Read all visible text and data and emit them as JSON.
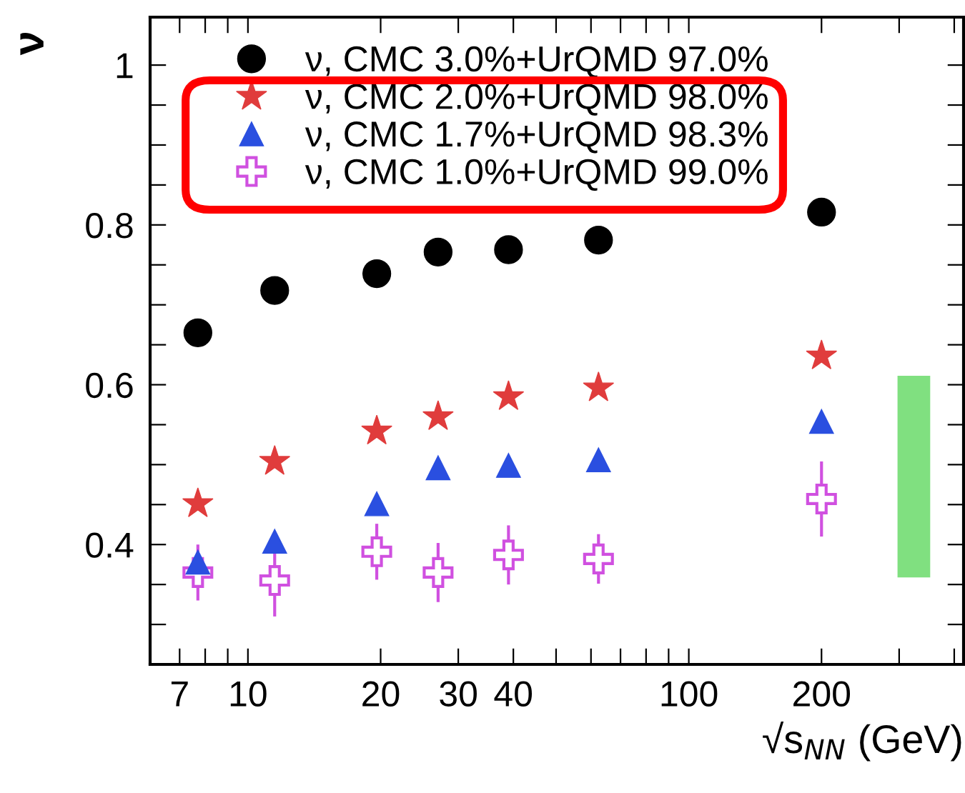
{
  "chart_data": {
    "type": "scatter",
    "xlabel": "√s$_{NN}$ (GeV)",
    "ylabel": "ν",
    "log": "x",
    "xlim": [
      6,
      420
    ],
    "ylim": [
      0.25,
      1.06
    ],
    "xticks": [
      7,
      {
        "value": 8,
        "label": null
      },
      {
        "value": 9,
        "label": null
      },
      10,
      20,
      30,
      40,
      {
        "value": 50,
        "label": null
      },
      {
        "value": 60,
        "label": null
      },
      {
        "value": 70,
        "label": null
      },
      {
        "value": 80,
        "label": null
      },
      {
        "value": 90,
        "label": null
      },
      100,
      200,
      {
        "value": 300,
        "label": null
      },
      {
        "value": 400,
        "label": null
      }
    ],
    "yticks": [
      {
        "value": 0.25,
        "label": null
      },
      {
        "value": 0.3,
        "label": null
      },
      {
        "value": 0.35,
        "label": null
      },
      0.4,
      {
        "value": 0.45,
        "label": null
      },
      {
        "value": 0.5,
        "label": null
      },
      {
        "value": 0.55,
        "label": null
      },
      0.6,
      {
        "value": 0.65,
        "label": null
      },
      {
        "value": 0.7,
        "label": null
      },
      {
        "value": 0.75,
        "label": null
      },
      0.8,
      {
        "value": 0.85,
        "label": null
      },
      {
        "value": 0.9,
        "label": null
      },
      {
        "value": 0.95,
        "label": null
      },
      1
    ],
    "grid": false,
    "legend": "top left",
    "x": [
      7.7,
      11.5,
      19.6,
      27,
      39,
      62.4,
      200
    ],
    "series": [
      {
        "name": "ν, CMC 3.0%+UrQMD 97.0%",
        "color": "#000000",
        "marker": "circle",
        "values": [
          0.665,
          0.718,
          0.739,
          0.766,
          0.769,
          0.781,
          0.816
        ]
      },
      {
        "name": "ν, CMC 2.0%+UrQMD 98.0%",
        "color": "#e03c3c",
        "marker": "star",
        "values": [
          0.451,
          0.504,
          0.542,
          0.56,
          0.585,
          0.596,
          0.636
        ]
      },
      {
        "name": "ν, CMC 1.7%+UrQMD 98.3%",
        "color": "#2a4fe0",
        "marker": "triangle",
        "values": [
          0.378,
          0.404,
          0.451,
          0.496,
          0.499,
          0.506,
          0.554
        ]
      },
      {
        "name": "ν, CMC 1.0%+UrQMD 99.0%",
        "color": "#d050e0",
        "marker": "cross",
        "values": [
          0.365,
          0.355,
          0.391,
          0.365,
          0.387,
          0.382,
          0.457
        ],
        "errors": [
          0.035,
          0.045,
          0.035,
          0.037,
          0.037,
          0.031,
          0.047
        ]
      },
      {
        "type": "bar",
        "color": "#80e080",
        "x": [
          325
        ],
        "base": [
          0.36
        ],
        "values": [
          0.25
        ]
      }
    ]
  }
}
